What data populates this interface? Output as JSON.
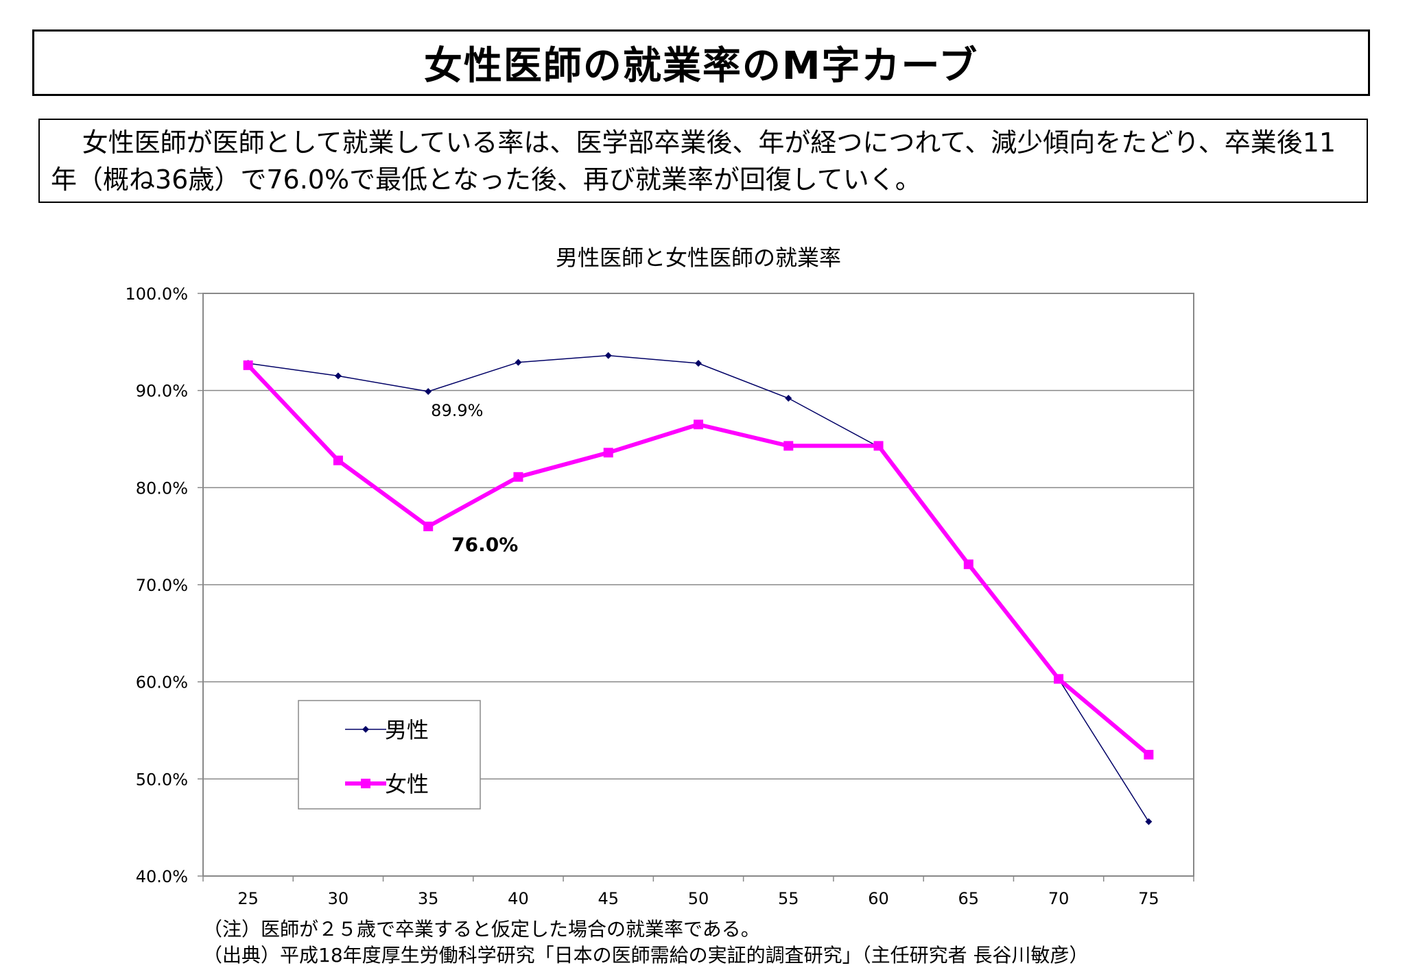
{
  "header": {
    "title": "女性医師の就業率のM字カーブ"
  },
  "summary": {
    "text": "女性医師が医師として就業している率は、医学部卒業後、年が経つにつれて、減少傾向をたどり、卒業後11年（概ね36歳）で76.0%で最低となった後、再び就業率が回復していく。"
  },
  "chart_data": {
    "type": "line",
    "title": "男性医師と女性医師の就業率",
    "x": [
      "25",
      "30",
      "35",
      "40",
      "45",
      "50",
      "55",
      "60",
      "65",
      "70",
      "75"
    ],
    "ylim": [
      40,
      100
    ],
    "yticks": [
      "40.0%",
      "50.0%",
      "60.0%",
      "70.0%",
      "80.0%",
      "90.0%",
      "100.0%"
    ],
    "grid": true,
    "legend_position": "bottom-left",
    "series": [
      {
        "name": "男性",
        "color": "#000066",
        "values": [
          92.8,
          91.5,
          89.9,
          92.9,
          93.6,
          92.8,
          89.2,
          84.2,
          72.0,
          60.3,
          45.6
        ]
      },
      {
        "name": "女性",
        "color": "#ff00ff",
        "values": [
          92.6,
          82.8,
          76.0,
          81.1,
          83.6,
          86.5,
          84.3,
          84.3,
          72.1,
          60.3,
          52.5
        ]
      }
    ],
    "annotations": [
      {
        "series": 0,
        "index": 2,
        "text": "89.9%"
      },
      {
        "series": 1,
        "index": 2,
        "text": "76.0%"
      }
    ]
  },
  "notes": {
    "line1": "（注）医師が２５歳で卒業すると仮定した場合の就業率である。",
    "line2": "（出典）平成18年度厚生労働科学研究「日本の医師需給の実証的調査研究」（主任研究者 長谷川敏彦）"
  }
}
